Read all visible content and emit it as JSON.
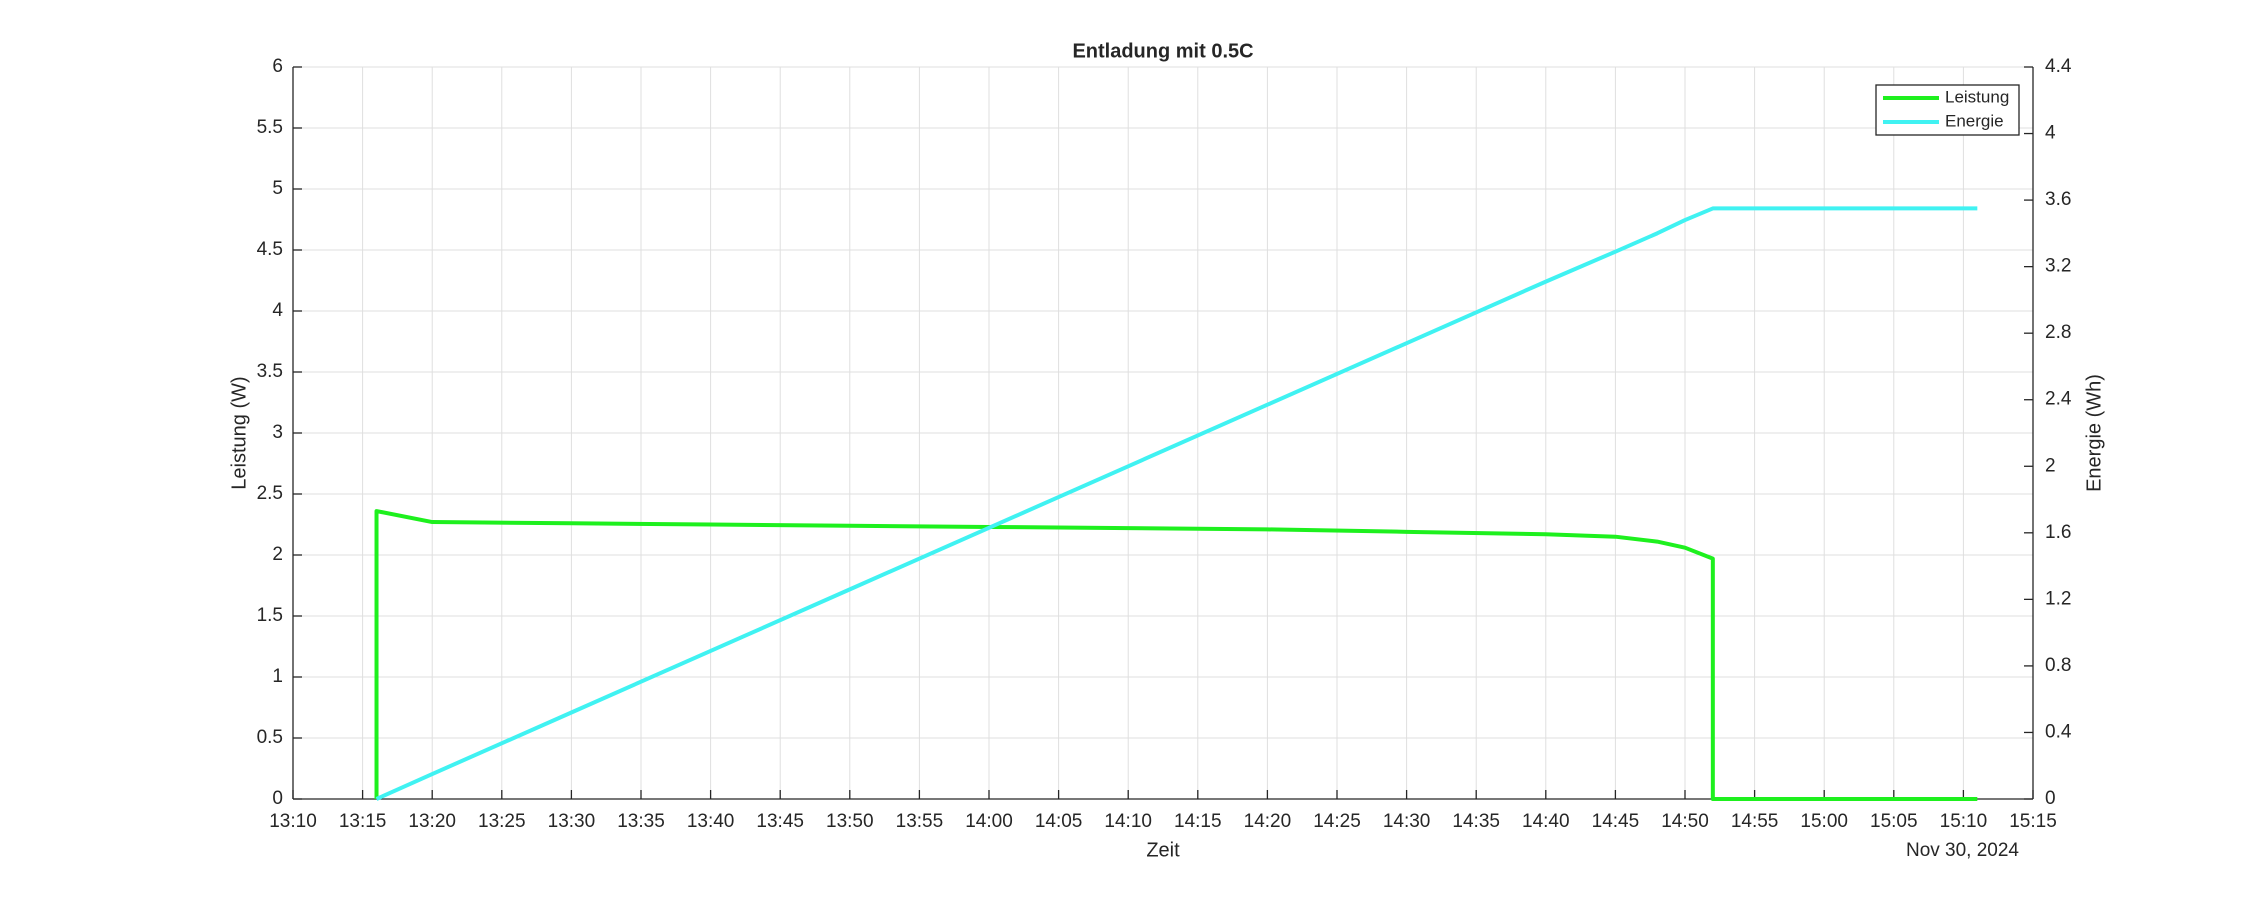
{
  "chart_data": {
    "type": "line",
    "title": "Entladung mit 0.5C",
    "x_label": "Zeit",
    "x_date_label": "Nov 30, 2024",
    "y_label": "Leistung (W)",
    "y2_label": "Energie (Wh)",
    "x": [
      "13:16",
      "13:16",
      "13:20",
      "13:30",
      "13:40",
      "13:50",
      "14:00",
      "14:10",
      "14:20",
      "14:30",
      "14:40",
      "14:45",
      "14:48",
      "14:50",
      "14:52",
      "14:52",
      "15:11"
    ],
    "series": [
      {
        "name": "Leistung",
        "color": "#1ef01e",
        "values": [
          0,
          2.36,
          2.27,
          2.26,
          2.25,
          2.24,
          2.23,
          2.22,
          2.21,
          2.19,
          2.17,
          2.15,
          2.11,
          2.06,
          1.97,
          0,
          0
        ]
      },
      {
        "name": "Energie",
        "color": "#40f2f2",
        "axis": "y2",
        "values": [
          0,
          0,
          0.15,
          0.52,
          0.89,
          1.26,
          1.63,
          2.0,
          2.37,
          2.74,
          3.11,
          3.29,
          3.4,
          3.48,
          3.55,
          3.55,
          3.55
        ]
      }
    ],
    "xlim": [
      "13:10",
      "15:15"
    ],
    "xticks": [
      "13:10",
      "13:15",
      "13:20",
      "13:25",
      "13:30",
      "13:35",
      "13:40",
      "13:45",
      "13:50",
      "13:55",
      "14:00",
      "14:05",
      "14:10",
      "14:15",
      "14:20",
      "14:25",
      "14:30",
      "14:35",
      "14:40",
      "14:45",
      "14:50",
      "14:55",
      "15:00",
      "15:05",
      "15:10",
      "15:15"
    ],
    "ylim": [
      0,
      6
    ],
    "yticks": [
      0,
      0.5,
      1,
      1.5,
      2,
      2.5,
      3,
      3.5,
      4,
      4.5,
      5,
      5.5,
      6
    ],
    "y2lim": [
      0,
      4.4
    ],
    "y2ticks": [
      0,
      0.4,
      0.8,
      1.2,
      1.6,
      2,
      2.4,
      2.8,
      3.2,
      3.6,
      4,
      4.4
    ],
    "grid": true,
    "legend_position": "top-right"
  }
}
